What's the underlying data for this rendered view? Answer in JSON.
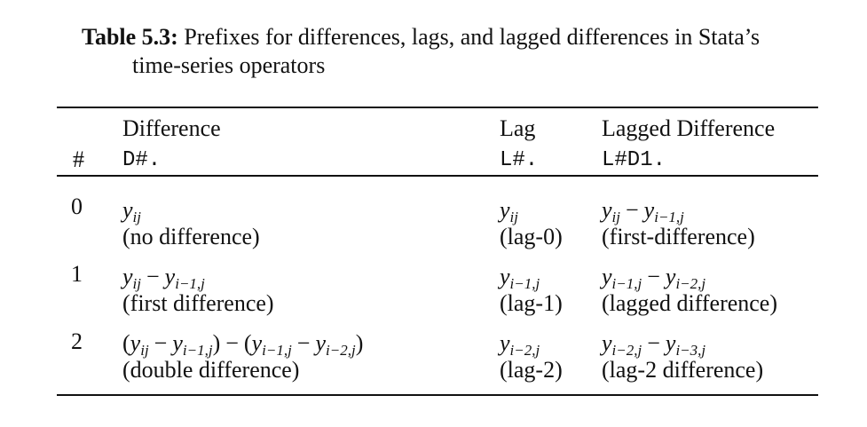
{
  "caption": {
    "label": "Table 5.3:",
    "text_line1": "Prefixes for differences, lags, and lagged differences in Stata’s",
    "text_line2": "time-series operators"
  },
  "header": {
    "hash": "#",
    "difference": {
      "title": "Difference",
      "code": "D#."
    },
    "lag": {
      "title": "Lag",
      "code": "L#."
    },
    "lagged_difference": {
      "title": "Lagged Difference",
      "code": "L#D1."
    }
  },
  "rows": [
    {
      "index": "0",
      "difference_note": "(no difference)",
      "lag_note": "(lag-0)",
      "lagged_note": "(first-difference)"
    },
    {
      "index": "1",
      "difference_note": "(first difference)",
      "lag_note": "(lag-1)",
      "lagged_note": "(lagged difference)"
    },
    {
      "index": "2",
      "difference_note": "(double difference)",
      "lag_note": "(lag-2)",
      "lagged_note": "(lag-2 difference)"
    }
  ],
  "symbols": {
    "y": "y",
    "minus": "−",
    "sub_ij": "ij",
    "sub_i1j": "i−1,j",
    "sub_i2j": "i−2,j",
    "sub_i3j": "i−3,j",
    "lparen": "(",
    "rparen": ")"
  }
}
